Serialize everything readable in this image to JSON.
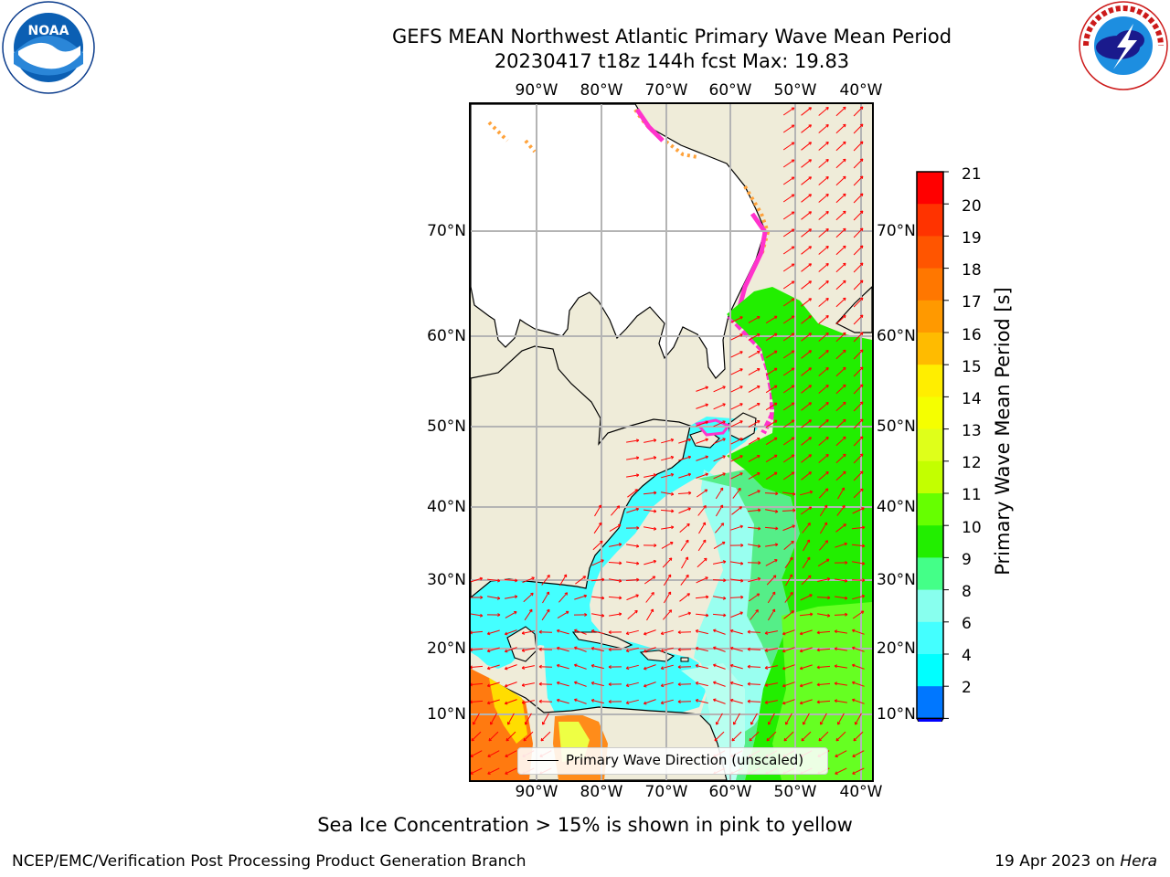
{
  "title_line1": "GEFS MEAN Northwest Atlantic Primary Wave Mean Period",
  "title_line2": "20230417 t18z 144h fcst   Max: 19.83",
  "lon_ticks": [
    "90°W",
    "80°W",
    "70°W",
    "60°W",
    "50°W",
    "40°W"
  ],
  "lat_ticks": [
    "70°N",
    "60°N",
    "50°N",
    "40°N",
    "30°N",
    "20°N",
    "10°N"
  ],
  "legend_label": "Primary Wave Direction (unscaled)",
  "colorbar": {
    "title": "Primary Wave Mean Period [s]",
    "ticks": [
      "21",
      "20",
      "19",
      "18",
      "17",
      "16",
      "15",
      "14",
      "13",
      "12",
      "11",
      "10",
      "9",
      "8",
      "6",
      "4",
      "2"
    ],
    "colors": [
      "#ff0000",
      "#ff3300",
      "#ff5500",
      "#ff7700",
      "#ff9900",
      "#ffbb00",
      "#ffee00",
      "#f5ff00",
      "#dfff1a",
      "#c3ff00",
      "#66ff00",
      "#22ee00",
      "#44ff88",
      "#88ffee",
      "#44ffff",
      "#00ffff",
      "#0077ff"
    ],
    "under_color": "#0000ff"
  },
  "bottom_note": "Sea Ice Concentration > 15% is shown in pink to yellow",
  "footer_left": "NCEP/EMC/Verification Post Processing Product Generation Branch",
  "footer_right_date": "19 Apr 2023 on",
  "footer_right_host": "Hera",
  "logo_left_text": "NOAA",
  "colors": {
    "land": "#efecd9",
    "ice_sheet": "#ffffff",
    "arrow": "#ff0000",
    "grid": "#b4b4b4"
  }
}
